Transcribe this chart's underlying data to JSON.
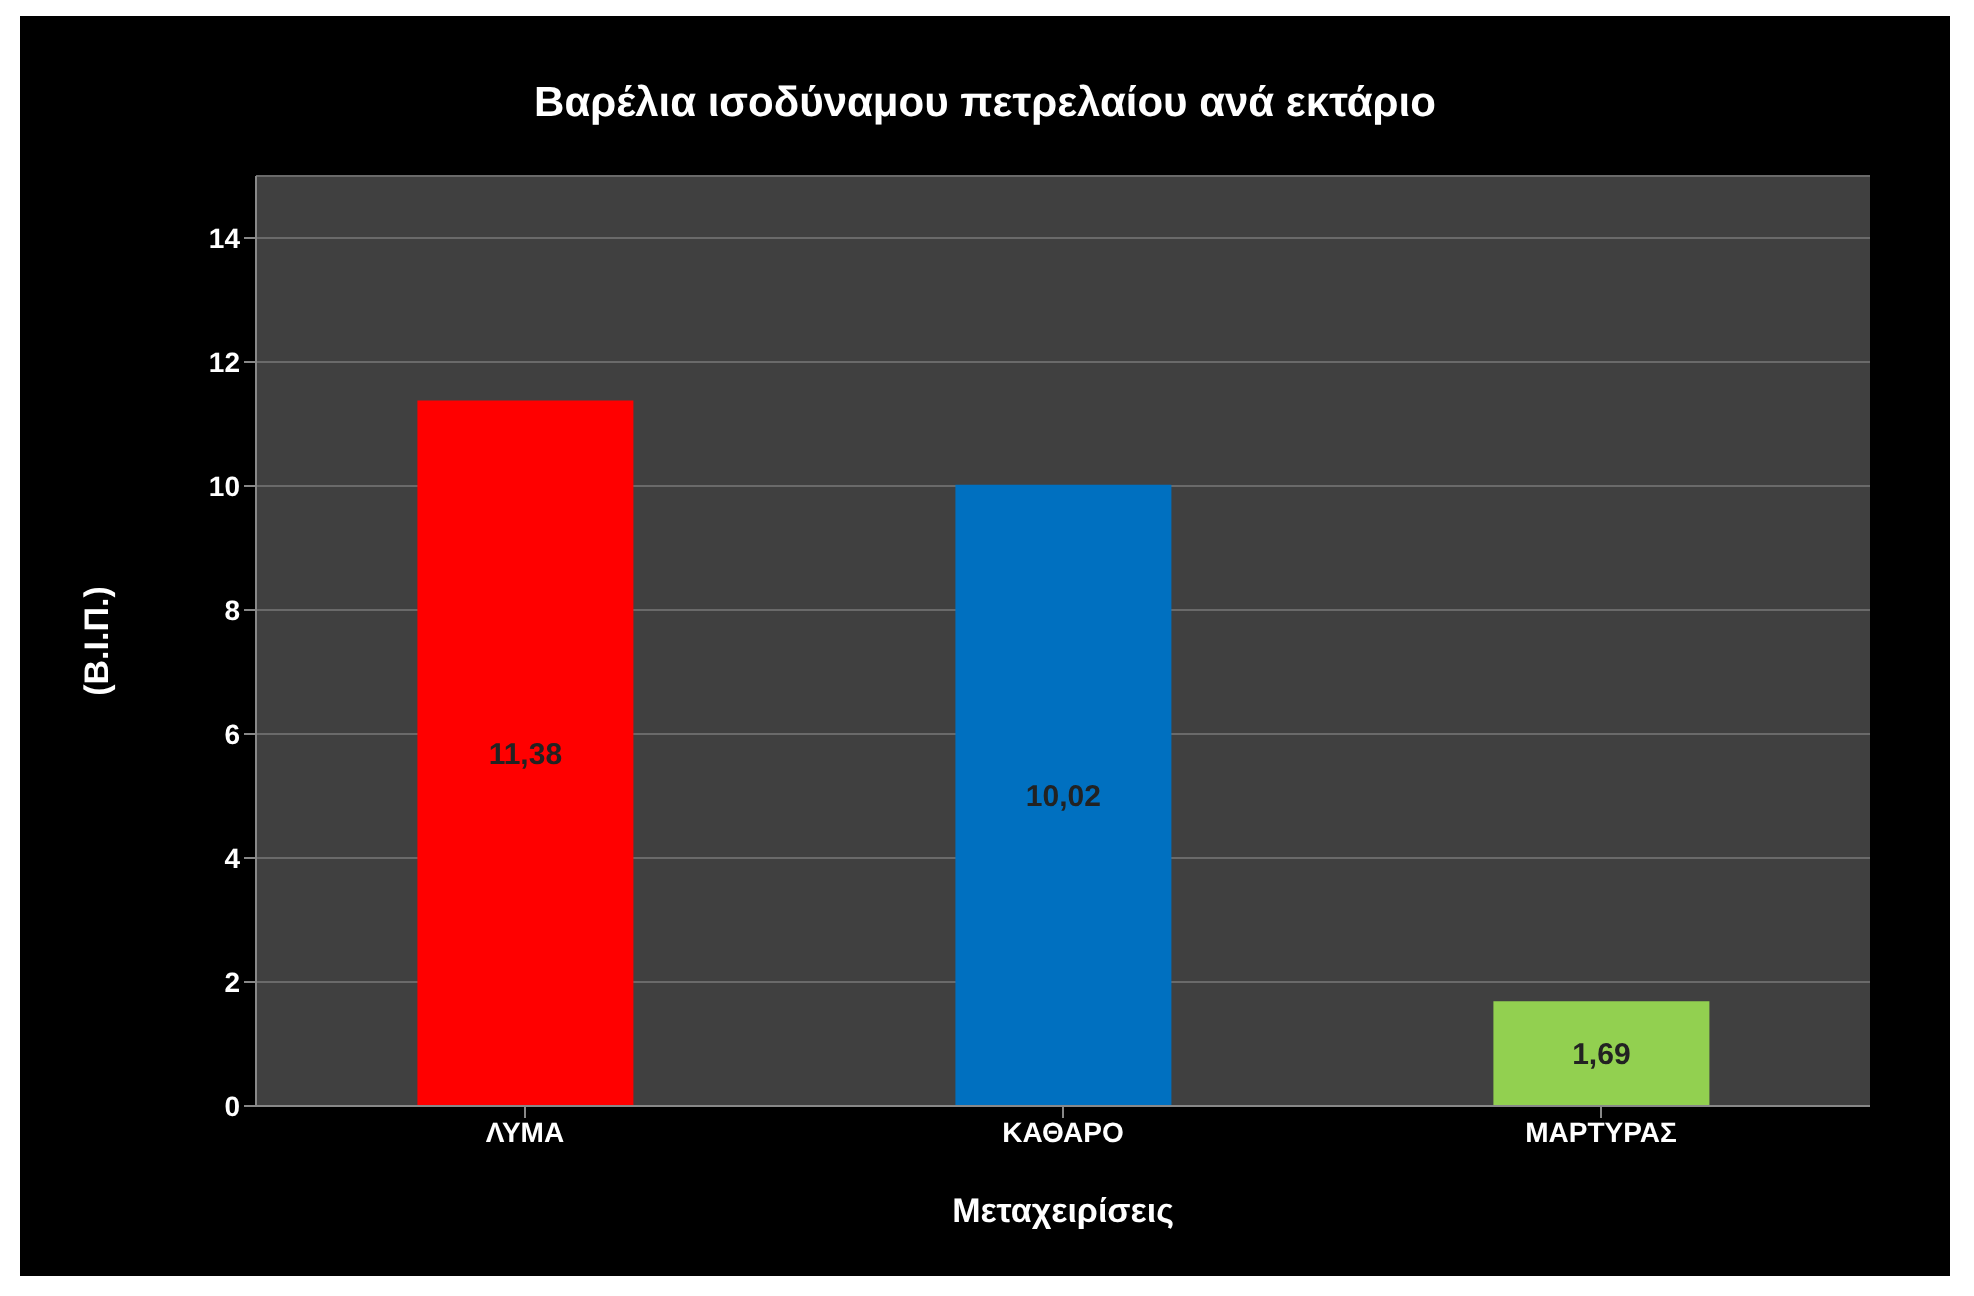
{
  "chart_data": {
    "type": "bar",
    "title": "Βαρέλια ισοδύναμου πετρελαίου ανά εκτάριο",
    "xlabel": "Μεταχειρίσεις",
    "ylabel": "(Β.Ι.Π.)",
    "categories": [
      "ΛΥΜΑ",
      "ΚΑΘΑΡΟ",
      "ΜΑΡΤΥΡΑΣ"
    ],
    "values": [
      11.38,
      10.02,
      1.69
    ],
    "colors": [
      "#ff0000",
      "#0070c0",
      "#92d050"
    ],
    "value_labels": [
      "11,38",
      "10,02",
      "1,69"
    ],
    "ylim": [
      0,
      15
    ],
    "yticks": [
      0,
      2,
      4,
      6,
      8,
      10,
      12,
      14
    ],
    "grid": "y"
  }
}
